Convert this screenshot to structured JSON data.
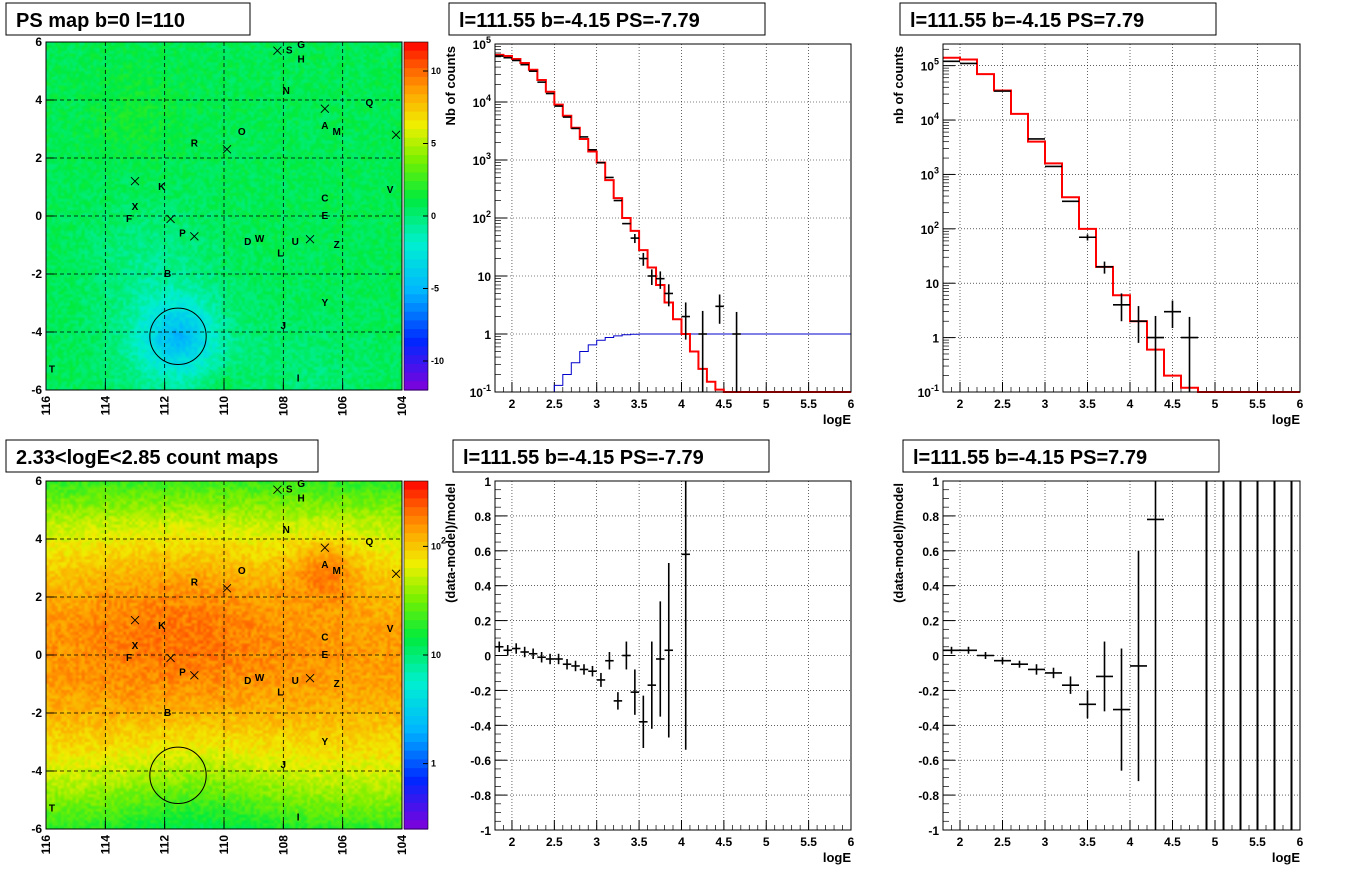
{
  "chart_data": [
    {
      "type": "heatmap",
      "title": "PS map b=0 l=110",
      "xlim": [
        116,
        104
      ],
      "ylim": [
        -6,
        6
      ],
      "x_ticks": [
        "116",
        "114",
        "112",
        "110",
        "108",
        "106",
        "104"
      ],
      "y_ticks": [
        "6",
        "4",
        "2",
        "0",
        "-2",
        "-4",
        "-6"
      ],
      "colorbar": {
        "scale": "linear",
        "range": [
          -12,
          12
        ],
        "ticks": [
          "10",
          "5",
          "0",
          "-5",
          "-10"
        ]
      },
      "sources": [
        {
          "label": "G",
          "l": 107.4,
          "b": 5.8
        },
        {
          "label": "S",
          "l": 107.8,
          "b": 5.6
        },
        {
          "label": "H",
          "l": 107.4,
          "b": 5.3
        },
        {
          "label": "N",
          "l": 107.9,
          "b": 4.2
        },
        {
          "label": "Q",
          "l": 105.1,
          "b": 3.8
        },
        {
          "label": "O",
          "l": 109.4,
          "b": 2.8
        },
        {
          "label": "A",
          "l": 106.6,
          "b": 3.0
        },
        {
          "label": "M",
          "l": 106.2,
          "b": 2.8
        },
        {
          "label": "R",
          "l": 111.0,
          "b": 2.4
        },
        {
          "label": "K",
          "l": 112.1,
          "b": 0.9
        },
        {
          "label": "V",
          "l": 104.4,
          "b": 0.8
        },
        {
          "label": "C",
          "l": 106.6,
          "b": 0.5
        },
        {
          "label": "X",
          "l": 113.0,
          "b": 0.2
        },
        {
          "label": "E",
          "l": 106.6,
          "b": -0.1
        },
        {
          "label": "F",
          "l": 113.2,
          "b": -0.2
        },
        {
          "label": "P",
          "l": 111.4,
          "b": -0.7
        },
        {
          "label": "D",
          "l": 109.2,
          "b": -1.0
        },
        {
          "label": "W",
          "l": 108.8,
          "b": -0.9
        },
        {
          "label": "U",
          "l": 107.6,
          "b": -1.0
        },
        {
          "label": "Z",
          "l": 106.2,
          "b": -1.1
        },
        {
          "label": "L",
          "l": 108.1,
          "b": -1.4
        },
        {
          "label": "B",
          "l": 111.9,
          "b": -2.1
        },
        {
          "label": "Y",
          "l": 106.6,
          "b": -3.1
        },
        {
          "label": "J",
          "l": 108.0,
          "b": -3.9
        },
        {
          "label": "T",
          "l": 115.8,
          "b": -5.4
        },
        {
          "label": "I",
          "l": 107.5,
          "b": -5.7
        }
      ],
      "crosses": [
        [
          108.2,
          5.7
        ],
        [
          106.6,
          3.7
        ],
        [
          104.2,
          2.8
        ],
        [
          109.9,
          2.3
        ],
        [
          113.0,
          1.2
        ],
        [
          111.8,
          -0.1
        ],
        [
          111.0,
          -0.7
        ],
        [
          107.1,
          -0.8
        ]
      ],
      "circle": {
        "l": 111.55,
        "b": -4.15,
        "r": 0.5
      }
    },
    {
      "type": "line",
      "title": "l=111.55 b=-4.15 PS=-7.79",
      "xlabel": "logE",
      "ylabel": "Nb of counts",
      "xlim": [
        1.8,
        6
      ],
      "ylog": true,
      "ylim": [
        0.1,
        100000
      ],
      "x_ticks": [
        "2",
        "2.5",
        "3",
        "3.5",
        "4",
        "4.5",
        "5",
        "5.5",
        "6"
      ],
      "y_ticks": [
        "10^5",
        "10^4",
        "10^3",
        "10^2",
        "10",
        "1",
        "10^-1"
      ],
      "grid": true,
      "data": {
        "x": [
          1.85,
          1.95,
          2.05,
          2.15,
          2.25,
          2.35,
          2.45,
          2.55,
          2.65,
          2.75,
          2.85,
          2.95,
          3.05,
          3.15,
          3.25,
          3.35,
          3.45,
          3.55,
          3.65,
          3.75,
          3.85,
          4.05,
          4.25,
          4.45,
          4.65
        ],
        "y": [
          62000,
          58000,
          52000,
          44000,
          34000,
          22000,
          14000,
          8500,
          5500,
          3500,
          2500,
          1500,
          900,
          500,
          200,
          80,
          45,
          20,
          10,
          9,
          5,
          2,
          1,
          3,
          1
        ],
        "yerr_lo": [
          0,
          0,
          0,
          0,
          0,
          0,
          0,
          0,
          0,
          0,
          0,
          0,
          0,
          0,
          0,
          0,
          8,
          5,
          3,
          3,
          2,
          1.2,
          0.9,
          1.5,
          0.9
        ],
        "yerr_hi": [
          0,
          0,
          0,
          0,
          0,
          0,
          0,
          0,
          0,
          0,
          0,
          0,
          0,
          0,
          0,
          0,
          8,
          5,
          3,
          3,
          2.2,
          1.5,
          1.5,
          1.8,
          1.4
        ],
        "bin_half": [
          0.05,
          0.05,
          0.05,
          0.05,
          0.05,
          0.05,
          0.05,
          0.05,
          0.05,
          0.05,
          0.05,
          0.05,
          0.05,
          0.05,
          0.05,
          0.05,
          0.05,
          0.05,
          0.05,
          0.05,
          0.05,
          0.05,
          0.05,
          0.05,
          0.05
        ]
      },
      "model_red": {
        "edges": [
          1.8,
          1.9,
          2.0,
          2.1,
          2.2,
          2.3,
          2.4,
          2.5,
          2.6,
          2.7,
          2.8,
          2.9,
          3.0,
          3.1,
          3.2,
          3.3,
          3.4,
          3.5,
          3.6,
          3.7,
          3.8,
          3.9,
          4.0,
          4.1,
          4.2,
          4.3,
          4.4,
          4.5,
          6.0
        ],
        "values": [
          65000,
          62000,
          55000,
          47000,
          36000,
          24000,
          15000,
          9000,
          5800,
          3600,
          2300,
          1400,
          900,
          450,
          220,
          100,
          60,
          28,
          14,
          7,
          3.5,
          1.8,
          1.0,
          0.5,
          0.25,
          0.15,
          0.11,
          0.1
        ]
      },
      "model_blue": {
        "edges": [
          1.8,
          2.5,
          2.6,
          2.7,
          2.8,
          2.9,
          3.0,
          3.1,
          3.2,
          3.3,
          3.4,
          3.5,
          6.0
        ],
        "values": [
          0.1,
          0.13,
          0.2,
          0.32,
          0.5,
          0.65,
          0.78,
          0.87,
          0.93,
          0.97,
          0.99,
          1.0
        ]
      }
    },
    {
      "type": "line",
      "title": "l=111.55 b=-4.15 PS=7.79",
      "xlabel": "logE",
      "ylabel": "nb of counts",
      "xlim": [
        1.8,
        6
      ],
      "ylog": true,
      "ylim": [
        0.1,
        250000
      ],
      "x_ticks": [
        "2",
        "2.5",
        "3",
        "3.5",
        "4",
        "4.5",
        "5",
        "5.5",
        "6"
      ],
      "y_ticks": [
        "10^5",
        "10^4",
        "10^3",
        "10^2",
        "10",
        "1",
        "10^-1"
      ],
      "grid": true,
      "data": {
        "x": [
          1.9,
          2.1,
          2.5,
          2.9,
          3.1,
          3.3,
          3.5,
          3.7,
          3.9,
          4.1,
          4.3,
          4.5,
          4.7
        ],
        "y": [
          120000,
          110000,
          34000,
          4500,
          1400,
          320,
          70,
          20,
          4,
          2,
          1,
          3,
          1
        ],
        "yerr_lo": [
          0,
          0,
          0,
          0,
          0,
          0,
          9,
          5,
          2,
          1.2,
          0.9,
          1.5,
          0.9
        ],
        "yerr_hi": [
          0,
          0,
          0,
          0,
          0,
          0,
          9,
          5,
          2.5,
          1.8,
          1.5,
          1.8,
          1.4
        ],
        "bin_half": [
          0.1,
          0.1,
          0.1,
          0.1,
          0.1,
          0.1,
          0.1,
          0.1,
          0.1,
          0.1,
          0.1,
          0.1,
          0.1
        ]
      },
      "model_red": {
        "edges": [
          1.8,
          2.0,
          2.2,
          2.4,
          2.6,
          2.8,
          3.0,
          3.2,
          3.4,
          3.6,
          3.8,
          4.0,
          4.2,
          4.4,
          4.6,
          4.8,
          6.0
        ],
        "values": [
          140000,
          130000,
          70000,
          35000,
          13000,
          4000,
          1600,
          380,
          100,
          20,
          6,
          2,
          0.6,
          0.2,
          0.12,
          0.1
        ]
      }
    },
    {
      "type": "heatmap",
      "title": "2.33<logE<2.85 count maps",
      "xlim": [
        116,
        104
      ],
      "ylim": [
        -6,
        6
      ],
      "x_ticks": [
        "116",
        "114",
        "112",
        "110",
        "108",
        "106",
        "104"
      ],
      "y_ticks": [
        "6",
        "4",
        "2",
        "0",
        "-2",
        "-4",
        "-6"
      ],
      "colorbar": {
        "scale": "log",
        "range": [
          0.25,
          400
        ],
        "ticks": [
          "10^2",
          "10",
          "1"
        ]
      },
      "sources": "same as panel 1",
      "circle": {
        "l": 111.55,
        "b": -4.15,
        "r": 0.5
      }
    },
    {
      "type": "scatter",
      "title": "l=111.55 b=-4.15 PS=-7.79",
      "xlabel": "logE",
      "ylabel": "(data-model)/model",
      "xlim": [
        1.8,
        6
      ],
      "ylim": [
        -1,
        1
      ],
      "x_ticks": [
        "2",
        "2.5",
        "3",
        "3.5",
        "4",
        "4.5",
        "5",
        "5.5",
        "6"
      ],
      "y_ticks": [
        "1",
        "0.8",
        "0.6",
        "0.4",
        "0.2",
        "0",
        "-0.2",
        "-0.4",
        "-0.6",
        "-0.8",
        "-1"
      ],
      "grid": true,
      "data": {
        "x": [
          1.85,
          1.95,
          2.05,
          2.15,
          2.25,
          2.35,
          2.45,
          2.55,
          2.65,
          2.75,
          2.85,
          2.95,
          3.05,
          3.15,
          3.25,
          3.35,
          3.45,
          3.55,
          3.65,
          3.75,
          3.85,
          4.05
        ],
        "y": [
          0.05,
          0.03,
          0.04,
          0.02,
          0.01,
          -0.01,
          -0.02,
          -0.02,
          -0.05,
          -0.06,
          -0.08,
          -0.09,
          -0.14,
          -0.03,
          -0.26,
          0.0,
          -0.21,
          -0.38,
          -0.17,
          -0.02,
          0.03,
          0.58
        ],
        "yerr": [
          0.03,
          0.03,
          0.03,
          0.03,
          0.03,
          0.03,
          0.03,
          0.03,
          0.03,
          0.03,
          0.03,
          0.03,
          0.04,
          0.05,
          0.05,
          0.08,
          0.13,
          0.15,
          0.25,
          0.33,
          0.5,
          1.12
        ],
        "bin_half": [
          0.05,
          0.05,
          0.05,
          0.05,
          0.05,
          0.05,
          0.05,
          0.05,
          0.05,
          0.05,
          0.05,
          0.05,
          0.05,
          0.05,
          0.05,
          0.05,
          0.05,
          0.05,
          0.05,
          0.05,
          0.05,
          0.05
        ]
      }
    },
    {
      "type": "scatter",
      "title": "l=111.55 b=-4.15 PS=7.79",
      "xlabel": "logE",
      "ylabel": "(data-model)/model",
      "xlim": [
        1.8,
        6
      ],
      "ylim": [
        -1,
        1
      ],
      "x_ticks": [
        "2",
        "2.5",
        "3",
        "3.5",
        "4",
        "4.5",
        "5",
        "5.5",
        "6"
      ],
      "y_ticks": [
        "1",
        "0.8",
        "0.6",
        "0.4",
        "0.2",
        "0",
        "-0.2",
        "-0.4",
        "-0.6",
        "-0.8",
        "-1"
      ],
      "grid": true,
      "data": {
        "x": [
          1.9,
          2.1,
          2.3,
          2.5,
          2.7,
          2.9,
          3.1,
          3.3,
          3.5,
          3.7,
          3.9,
          4.1,
          4.3
        ],
        "y": [
          0.03,
          0.03,
          0.0,
          -0.03,
          -0.05,
          -0.08,
          -0.1,
          -0.17,
          -0.28,
          -0.12,
          -0.31,
          -0.06,
          0.78
        ],
        "yerr": [
          0.02,
          0.02,
          0.02,
          0.02,
          0.02,
          0.03,
          0.03,
          0.05,
          0.08,
          0.2,
          0.35,
          0.66,
          1.8
        ],
        "bin_half": [
          0.1,
          0.1,
          0.1,
          0.1,
          0.1,
          0.1,
          0.1,
          0.1,
          0.1,
          0.1,
          0.1,
          0.1,
          0.1
        ]
      },
      "vertical_lines_x": [
        4.9,
        5.1,
        5.3,
        5.5,
        5.7,
        5.9
      ]
    }
  ]
}
